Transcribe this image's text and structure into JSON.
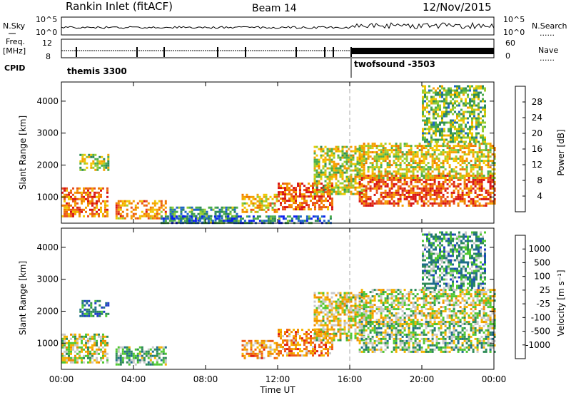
{
  "header": {
    "station": "Rankin Inlet (fitACF)",
    "beam": "Beam 14",
    "date": "12/Nov/2015"
  },
  "status_panels": {
    "nsky_label": "N.Sky",
    "nsearch_label": "N.Search",
    "freq_label_line1": "Freq.",
    "freq_label_line2": "[MHz]",
    "nave_label": "Nave",
    "cpid_label": "CPID",
    "noise_ticks": [
      "10^5",
      "10^0"
    ],
    "freq_ticks": [
      "12",
      "8"
    ],
    "nave_ticks": [
      "60",
      "0"
    ],
    "cpid_segments": [
      {
        "label": "themis 3300",
        "start_hour": 0
      },
      {
        "label": "twofsound -3503",
        "start_hour": 16
      }
    ],
    "dotted_marker": "......"
  },
  "chart_data": [
    {
      "type": "heatmap",
      "name": "power",
      "ylabel": "Slant Range [km]",
      "xlabel": "",
      "xlim": [
        0,
        24
      ],
      "ylim": [
        180,
        4600
      ],
      "x_ticks": [
        0,
        4,
        8,
        12,
        16,
        20,
        24
      ],
      "y_ticks": [
        1000,
        2000,
        3000,
        4000
      ],
      "colorbar": {
        "label": "Power [dB]",
        "ticks": [
          4,
          8,
          12,
          16,
          20,
          24,
          28
        ],
        "range": [
          0,
          32
        ],
        "colors": [
          "#0a1ef0",
          "#1e64c8",
          "#2e8b57",
          "#4cae4c",
          "#9acd32",
          "#f0c800",
          "#f5a000",
          "#f07800",
          "#e8501e",
          "#d81414"
        ]
      },
      "regions": [
        {
          "x": [
            0.0,
            2.5
          ],
          "y": [
            400,
            1300
          ],
          "level": 0.75
        },
        {
          "x": [
            1.0,
            2.6
          ],
          "y": [
            1850,
            2350
          ],
          "level": 0.45
        },
        {
          "x": [
            3.0,
            5.8
          ],
          "y": [
            350,
            900
          ],
          "level": 0.7
        },
        {
          "x": [
            6.0,
            9.8
          ],
          "y": [
            200,
            700
          ],
          "level": 0.3
        },
        {
          "x": [
            10.0,
            12.0
          ],
          "y": [
            500,
            1100
          ],
          "level": 0.6
        },
        {
          "x": [
            12.0,
            15.0
          ],
          "y": [
            600,
            1450
          ],
          "level": 0.8
        },
        {
          "x": [
            14.0,
            16.8
          ],
          "y": [
            1100,
            2600
          ],
          "level": 0.5
        },
        {
          "x": [
            16.5,
            24.0
          ],
          "y": [
            700,
            1700
          ],
          "level": 0.85
        },
        {
          "x": [
            16.5,
            24.0
          ],
          "y": [
            1600,
            2700
          ],
          "level": 0.55
        },
        {
          "x": [
            20.0,
            23.5
          ],
          "y": [
            2700,
            4500
          ],
          "level": 0.4
        },
        {
          "x": [
            5.5,
            15.0
          ],
          "y": [
            180,
            420
          ],
          "level": 0.2
        }
      ]
    },
    {
      "type": "heatmap",
      "name": "velocity",
      "ylabel": "Slant Range [km]",
      "xlabel": "Time UT",
      "xlim": [
        0,
        24
      ],
      "ylim": [
        180,
        4600
      ],
      "x_ticks": [
        0,
        4,
        8,
        12,
        16,
        20,
        24
      ],
      "x_tick_labels": [
        "00:00",
        "04:00",
        "08:00",
        "12:00",
        "16:00",
        "20:00",
        "00:00"
      ],
      "y_ticks": [
        1000,
        2000,
        3000,
        4000
      ],
      "colorbar": {
        "label": "Velocity [m s⁻¹]",
        "tick_labels": [
          "1000",
          "500",
          "100",
          "25",
          "-25",
          "-100",
          "-500",
          "-1000"
        ],
        "colors": [
          "#1e3cc8",
          "#1f6e8c",
          "#2e8b57",
          "#50c832",
          "#c8c8c8",
          "#f5b400",
          "#f08c00",
          "#f05a14",
          "#dc1e14"
        ]
      },
      "regions": [
        {
          "x": [
            0.0,
            2.5
          ],
          "y": [
            400,
            1300
          ],
          "level": 0.5
        },
        {
          "x": [
            1.0,
            2.6
          ],
          "y": [
            1850,
            2350
          ],
          "level": 0.2
        },
        {
          "x": [
            3.0,
            5.8
          ],
          "y": [
            350,
            900
          ],
          "level": 0.35
        },
        {
          "x": [
            10.0,
            12.0
          ],
          "y": [
            500,
            1100
          ],
          "level": 0.7
        },
        {
          "x": [
            12.0,
            15.0
          ],
          "y": [
            600,
            1450
          ],
          "level": 0.75
        },
        {
          "x": [
            14.0,
            16.8
          ],
          "y": [
            1100,
            2600
          ],
          "level": 0.55
        },
        {
          "x": [
            16.5,
            24.0
          ],
          "y": [
            700,
            1700
          ],
          "level": 0.4
        },
        {
          "x": [
            16.5,
            24.0
          ],
          "y": [
            1600,
            2700
          ],
          "level": 0.5
        },
        {
          "x": [
            20.0,
            23.5
          ],
          "y": [
            2700,
            4500
          ],
          "level": 0.3
        }
      ]
    }
  ]
}
